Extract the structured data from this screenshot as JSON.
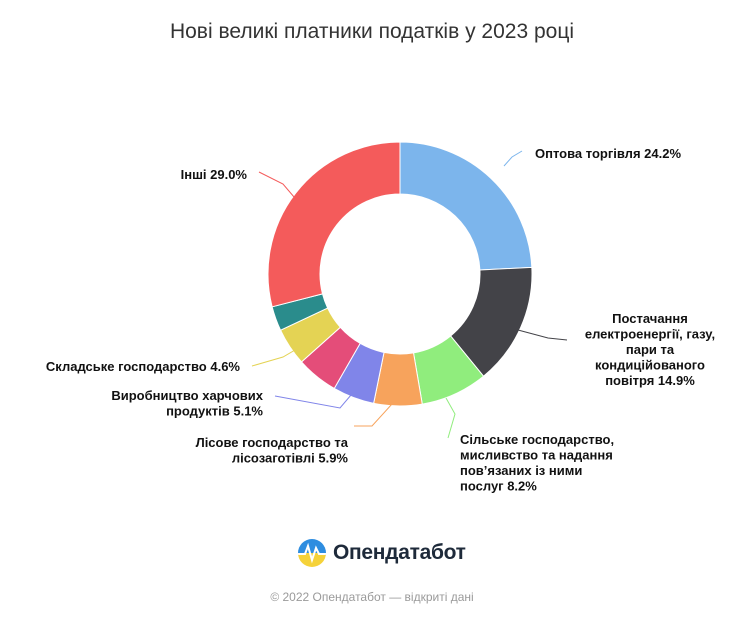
{
  "chart_data": {
    "type": "pie",
    "title": "Нові великі платники податків у 2023 році",
    "categories": [
      "Оптова торгівля",
      "Постачання електроенергії, газу, пари та кондиційованого повітря",
      "Сільське господарство, мисливство та надання пов’язаних із ними послуг",
      "Лісове господарство та лісозаготівлі",
      "Виробництво харчових продуктів",
      "Складське господарство",
      "Інші"
    ],
    "values": [
      24.2,
      14.9,
      8.2,
      5.9,
      5.1,
      4.6,
      29.0
    ],
    "unlabeled_slices": [
      {
        "value": 3.0,
        "color": "#2a8c8c"
      },
      {
        "value": 5.1,
        "color": "#e44d79"
      }
    ],
    "colors": [
      "#7cb5ec",
      "#434348",
      "#90ed7d",
      "#f7a35c",
      "#8085e9",
      "#e4d354",
      "#f45b5b"
    ],
    "labels": [
      {
        "lines": [
          "Оптова торгівля 24.2%"
        ]
      },
      {
        "lines": [
          "Постачання",
          "електроенергії, газу,",
          "пари та",
          "кондиційованого",
          "повітря 14.9%"
        ]
      },
      {
        "lines": [
          "Сільське господарство,",
          "мисливство та надання",
          "пов’язаних із ними",
          "послуг 8.2%"
        ]
      },
      {
        "lines": [
          "Лісове господарство та",
          "лісозаготівлі 5.9%"
        ]
      },
      {
        "lines": [
          "Виробництво харчових",
          "продуктів 5.1%"
        ]
      },
      {
        "lines": [
          "Складське господарство 4.6%"
        ]
      },
      {
        "lines": [
          "Інші 29.0%"
        ]
      }
    ],
    "legend": "none"
  },
  "brand": {
    "name": "Опендатабот"
  },
  "footer": {
    "text": "© 2022 Опендатабот — відкриті дані"
  }
}
